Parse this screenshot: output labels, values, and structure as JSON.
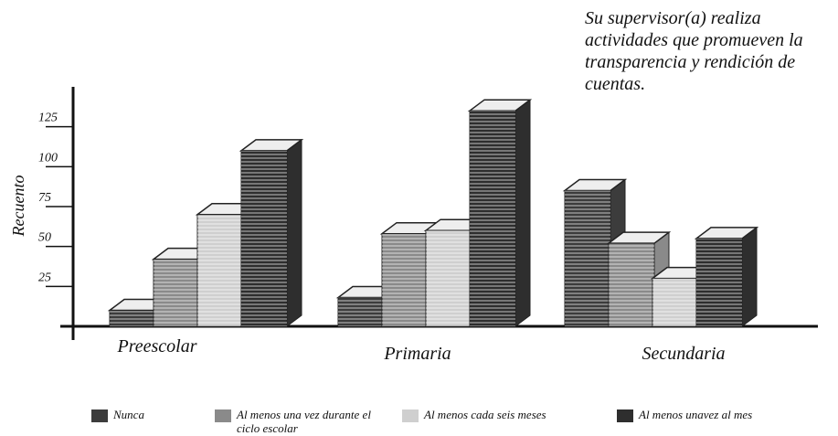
{
  "chart_data": {
    "type": "bar3d",
    "title": "Su supervisor(a) realiza actividades que promueven la transparencia y rendición de cuentas.",
    "y_label": "Recuento",
    "categories": [
      "Preescolar",
      "Primaria",
      "Secundaria"
    ],
    "series": [
      {
        "name": "Nunca",
        "color": "#3c3c3c",
        "values": [
          10,
          18,
          85
        ]
      },
      {
        "name": "Al menos una vez durante el ciclo escolar",
        "color": "#8a8a8a",
        "values": [
          42,
          58,
          52
        ]
      },
      {
        "name": "Al menos cada seis meses",
        "color": "#cfcfcf",
        "values": [
          70,
          60,
          30
        ]
      },
      {
        "name": "Al menos unavez al mes",
        "color": "#2e2e2e",
        "values": [
          110,
          135,
          55
        ]
      }
    ],
    "ylim": [
      0,
      150
    ],
    "yticks": [
      25,
      50,
      75,
      100,
      125
    ]
  }
}
